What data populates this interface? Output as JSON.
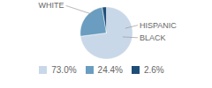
{
  "chart_data": {
    "type": "pie",
    "categories": [
      "WHITE",
      "HISPANIC",
      "BLACK"
    ],
    "values": [
      73.0,
      24.4,
      2.6
    ],
    "colors": [
      "#c9d8e8",
      "#6a9dbf",
      "#1e4d78"
    ],
    "value_labels": [
      "73.0%",
      "24.4%",
      "2.6%"
    ],
    "legend": "bottom"
  }
}
